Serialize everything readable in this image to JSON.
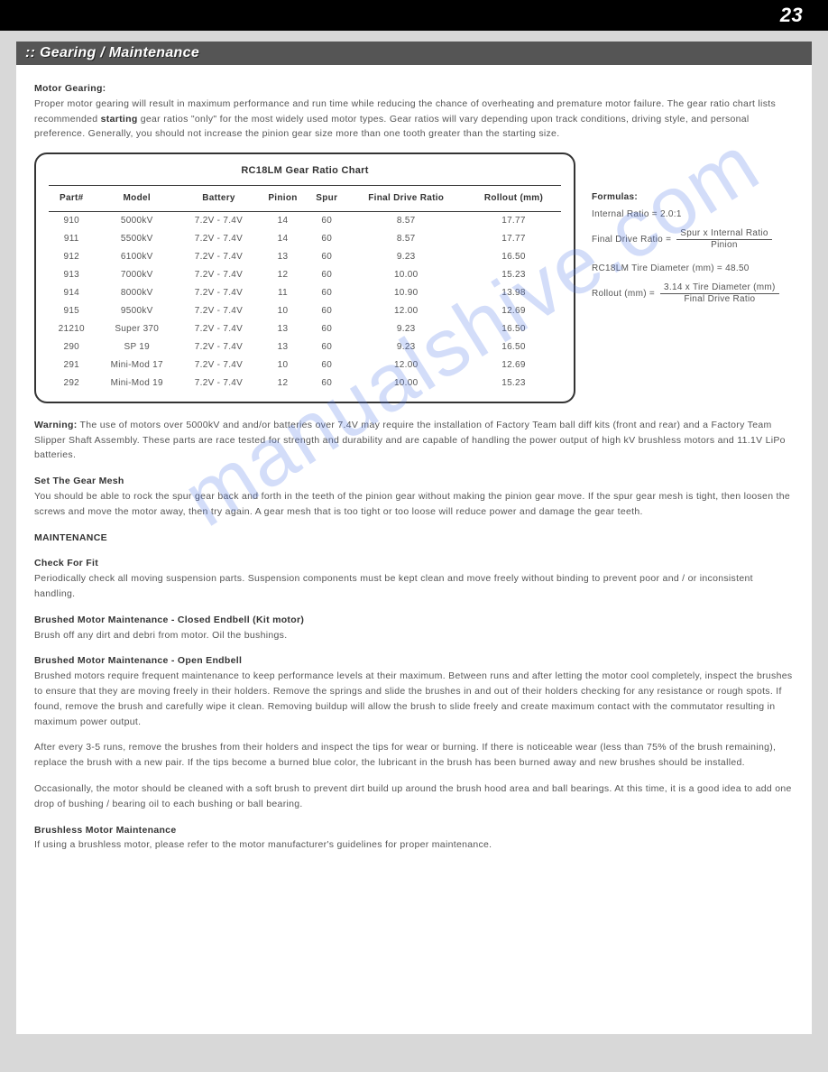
{
  "page_number": "23",
  "section_title": ":: Gearing / Maintenance",
  "watermark": "manualshive.com",
  "motor_gearing": {
    "heading": "Motor Gearing:",
    "text_a": "Proper motor gearing will result in maximum performance and run time while reducing the chance of overheating and premature motor failure.  The gear ratio chart lists recommended ",
    "text_bold": "starting",
    "text_b": " gear ratios \"only\" for the most widely used motor types.  Gear ratios will vary depending upon track conditions, driving style, and personal preference.  Generally, you should not increase the pinion gear size more than one tooth greater than the starting size."
  },
  "chart": {
    "title": "RC18LM Gear Ratio Chart",
    "columns": [
      "Part#",
      "Model",
      "Battery",
      "Pinion",
      "Spur",
      "Final Drive Ratio",
      "Rollout (mm)"
    ],
    "rows": [
      [
        "910",
        "5000kV",
        "7.2V - 7.4V",
        "14",
        "60",
        "8.57",
        "17.77"
      ],
      [
        "911",
        "5500kV",
        "7.2V - 7.4V",
        "14",
        "60",
        "8.57",
        "17.77"
      ],
      [
        "912",
        "6100kV",
        "7.2V - 7.4V",
        "13",
        "60",
        "9.23",
        "16.50"
      ],
      [
        "913",
        "7000kV",
        "7.2V - 7.4V",
        "12",
        "60",
        "10.00",
        "15.23"
      ],
      [
        "914",
        "8000kV",
        "7.2V - 7.4V",
        "11",
        "60",
        "10.90",
        "13.98"
      ],
      [
        "915",
        "9500kV",
        "7.2V - 7.4V",
        "10",
        "60",
        "12.00",
        "12.69"
      ],
      [
        "21210",
        "Super 370",
        "7.2V - 7.4V",
        "13",
        "60",
        "9.23",
        "16.50"
      ],
      [
        "290",
        "SP 19",
        "7.2V - 7.4V",
        "13",
        "60",
        "9.23",
        "16.50"
      ],
      [
        "291",
        "Mini-Mod 17",
        "7.2V - 7.4V",
        "10",
        "60",
        "12.00",
        "12.69"
      ],
      [
        "292",
        "Mini-Mod 19",
        "7.2V - 7.4V",
        "12",
        "60",
        "10.00",
        "15.23"
      ]
    ]
  },
  "formulas": {
    "heading": "Formulas:",
    "internal": "Internal Ratio = 2.0:1",
    "fdr_lhs": "Final Drive Ratio  =",
    "fdr_num": "Spur x Internal Ratio",
    "fdr_den": "Pinion",
    "tire": "RC18LM Tire Diameter (mm) = 48.50",
    "rollout_lhs": "Rollout (mm)  =",
    "rollout_num": "3.14 x Tire Diameter (mm)",
    "rollout_den": "Final Drive Ratio"
  },
  "warning": {
    "label": "Warning:",
    "text": " The use of motors over 5000kV and and/or batteries over 7.4V may require the installation of Factory Team ball diff kits (front and rear) and a Factory Team Slipper Shaft Assembly. These parts are race tested for strength and durability and are capable of handling the power output of high kV brushless motors and 11.1V LiPo batteries."
  },
  "gear_mesh": {
    "heading": "Set The Gear Mesh",
    "text": "You should be able to rock the spur gear back and forth in the teeth of the pinion gear without making the pinion gear move.  If the spur gear mesh is tight, then loosen the screws and move the motor away, then try again.  A gear mesh that is too tight or too loose will reduce power and damage the gear teeth."
  },
  "maintenance_heading": "MAINTENANCE",
  "check_fit": {
    "heading": "Check For Fit",
    "text": "Periodically check all moving suspension parts.  Suspension components must be kept clean and move freely without binding to prevent poor and / or inconsistent handling."
  },
  "closed_endbell": {
    "heading": "Brushed Motor Maintenance - Closed Endbell (Kit motor)",
    "text": "Brush off any dirt and debri from motor.  Oil the bushings."
  },
  "open_endbell": {
    "heading": "Brushed Motor Maintenance - Open Endbell",
    "p1": "Brushed motors require frequent maintenance to keep performance levels at their maximum.  Between runs and after letting the motor cool completely, inspect the brushes to ensure that they are moving freely in their holders.  Remove the springs and slide the brushes in and out of  their holders checking for any resistance or rough spots.  If found, remove the brush and carefully wipe it clean.  Removing buildup will allow the brush to slide freely and create maximum contact with the commutator resulting in maximum power output.",
    "p2": "After every 3-5 runs, remove the brushes from their holders and inspect the tips for wear or burning.  If there is noticeable wear (less than 75% of the brush remaining), replace the brush with a new pair.  If the tips become a burned blue color, the lubricant in the brush has been burned away and new brushes should be installed.",
    "p3": "Occasionally, the motor should be cleaned with a soft brush to prevent dirt build up around the brush hood area and ball bearings.  At this time, it is a good idea to add one drop of bushing / bearing oil to each bushing or ball bearing."
  },
  "brushless": {
    "heading": "Brushless Motor Maintenance",
    "text": "If using a brushless motor, please refer to the motor manufacturer's guidelines for proper maintenance."
  }
}
